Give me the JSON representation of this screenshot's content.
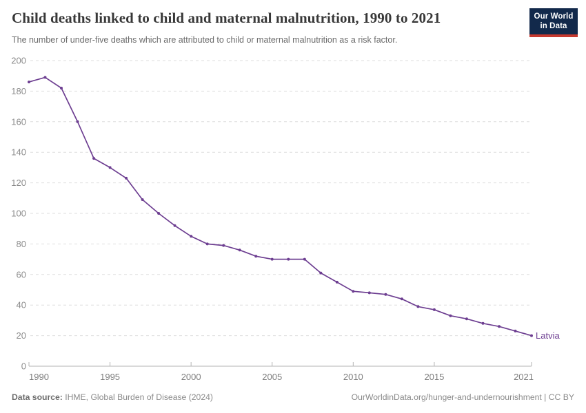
{
  "header": {
    "title": "Child deaths linked to child and maternal malnutrition, 1990 to 2021",
    "subtitle": "The number of under-five deaths which are attributed to child or maternal malnutrition as a risk factor.",
    "logo_line1": "Our World",
    "logo_line2": "in Data"
  },
  "chart_data": {
    "type": "line",
    "title": "Child deaths linked to child and maternal malnutrition, 1990 to 2021",
    "xlabel": "",
    "ylabel": "",
    "x": [
      1990,
      1991,
      1992,
      1993,
      1994,
      1995,
      1996,
      1997,
      1998,
      1999,
      2000,
      2001,
      2002,
      2003,
      2004,
      2005,
      2006,
      2007,
      2008,
      2009,
      2010,
      2011,
      2012,
      2013,
      2014,
      2015,
      2016,
      2017,
      2018,
      2019,
      2020,
      2021
    ],
    "series": [
      {
        "name": "Latvia",
        "color": "#6D3E91",
        "values": [
          186,
          189,
          182,
          160,
          136,
          130,
          123,
          109,
          100,
          92,
          85,
          80,
          79,
          76,
          72,
          70,
          70,
          70,
          61,
          55,
          49,
          48,
          47,
          44,
          39,
          37,
          33,
          31,
          28,
          26,
          23,
          20
        ]
      }
    ],
    "xlim": [
      1990,
      2021
    ],
    "ylim": [
      0,
      200
    ],
    "x_ticks": [
      1990,
      1995,
      2000,
      2005,
      2010,
      2015,
      2021
    ],
    "y_ticks": [
      0,
      20,
      40,
      60,
      80,
      100,
      120,
      140,
      160,
      180,
      200
    ],
    "grid": "horizontal-dashed",
    "legend_position": "line-end-label",
    "markers": true
  },
  "footer": {
    "source_label": "Data source:",
    "source_value": " IHME, Global Burden of Disease (2024)",
    "attribution": "OurWorldinData.org/hunger-and-undernourishment | CC BY"
  },
  "colors": {
    "line": "#6D3E91",
    "grid": "#dedede",
    "axis": "#b3b3b3",
    "y_tick_label": "#8c8c8c",
    "x_tick_label": "#7d7d7d"
  }
}
